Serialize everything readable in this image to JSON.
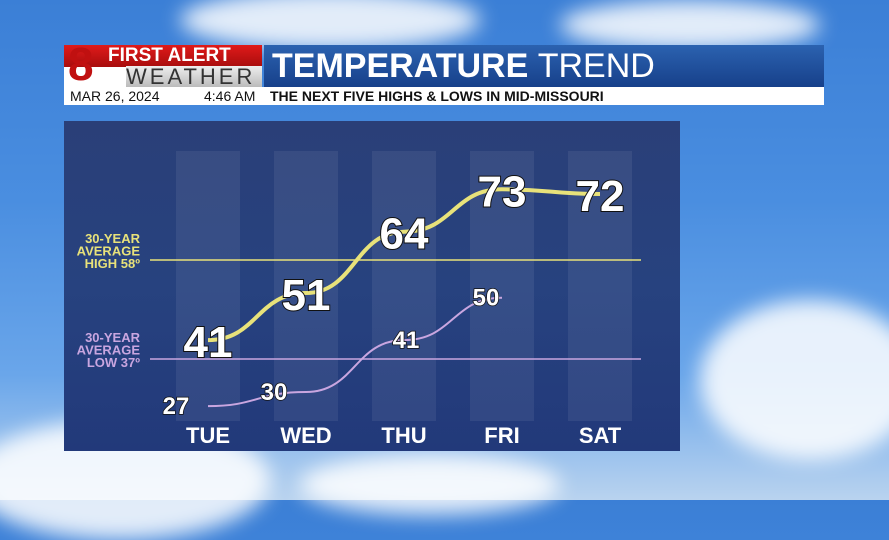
{
  "header": {
    "logo_number": "8",
    "logo_line1": "FIRST ALERT",
    "logo_line2": "WEATHER",
    "title_bold": "TEMPERATURE",
    "title_thin": "TREND",
    "date": "MAR 26, 2024",
    "time": "4:46 AM",
    "subtitle": "THE NEXT FIVE HIGHS & LOWS IN MID-MISSOURI"
  },
  "chart_data": {
    "type": "line",
    "categories": [
      "TUE",
      "WED",
      "THU",
      "FRI",
      "SAT"
    ],
    "series": [
      {
        "name": "Highs",
        "values": [
          41,
          51,
          64,
          73,
          72
        ],
        "color": "#e8e27a"
      },
      {
        "name": "Lows",
        "values": [
          27,
          30,
          41,
          50,
          null
        ],
        "color": "#c9a6e0"
      }
    ],
    "reference_lines": [
      {
        "label": [
          "30-YEAR",
          "AVERAGE",
          "HIGH 58º"
        ],
        "value": 58,
        "color": "#e8e27a"
      },
      {
        "label": [
          "30-YEAR",
          "AVERAGE",
          "LOW 37º"
        ],
        "value": 37,
        "color": "#c9a6e0"
      }
    ]
  }
}
